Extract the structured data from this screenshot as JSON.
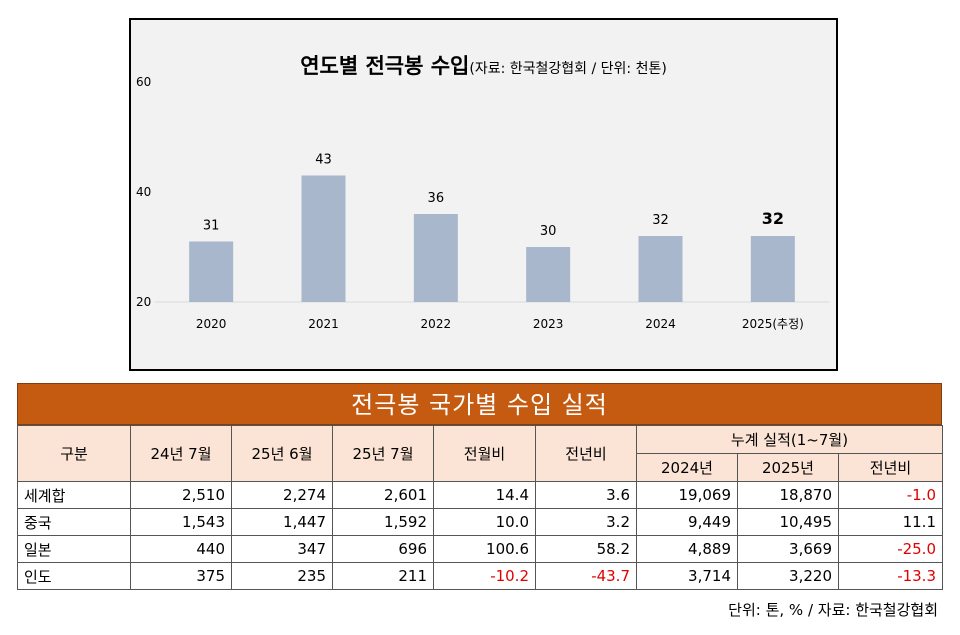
{
  "chart_data": {
    "type": "bar",
    "title": "연도별 전극봉 수입",
    "subtitle": "(자료: 한국철강협회 / 단위: 천톤)",
    "categories": [
      "2020",
      "2021",
      "2022",
      "2023",
      "2024",
      "2025(추정)"
    ],
    "values": [
      31,
      43,
      36,
      30,
      32,
      32
    ],
    "data_labels": [
      "31",
      "43",
      "36",
      "30",
      "32",
      "32"
    ],
    "highlight_index": 5,
    "yticks": [
      "20",
      "40",
      "60"
    ],
    "ylim": [
      20,
      60
    ],
    "bar_color": "#a9b7cc",
    "grid": false
  },
  "table": {
    "title": "전극봉 국가별 수입 실적",
    "headers": {
      "category": "구분",
      "col1": "24년 7월",
      "col2": "25년 6월",
      "col3": "25년 7월",
      "col4": "전월비",
      "col5": "전년비",
      "cumulative": "누계 실적(1~7월)",
      "cum1": "2024년",
      "cum2": "2025년",
      "cum3": "전년비"
    },
    "rows": [
      {
        "name": "세계합",
        "cells": [
          "2,510",
          "2,274",
          "2,601",
          "14.4",
          "3.6",
          "19,069",
          "18,870",
          "-1.0"
        ]
      },
      {
        "name": "중국",
        "cells": [
          "1,543",
          "1,447",
          "1,592",
          "10.0",
          "3.2",
          "9,449",
          "10,495",
          "11.1"
        ]
      },
      {
        "name": "일본",
        "cells": [
          "440",
          "347",
          "696",
          "100.6",
          "58.2",
          "4,889",
          "3,669",
          "-25.0"
        ]
      },
      {
        "name": "인도",
        "cells": [
          "375",
          "235",
          "211",
          "-10.2",
          "-43.7",
          "3,714",
          "3,220",
          "-13.3"
        ]
      }
    ],
    "negative_color": "#e00000",
    "header_color": "#c55a11"
  },
  "footnote": "단위: 톤, % / 자료: 한국철강협회"
}
